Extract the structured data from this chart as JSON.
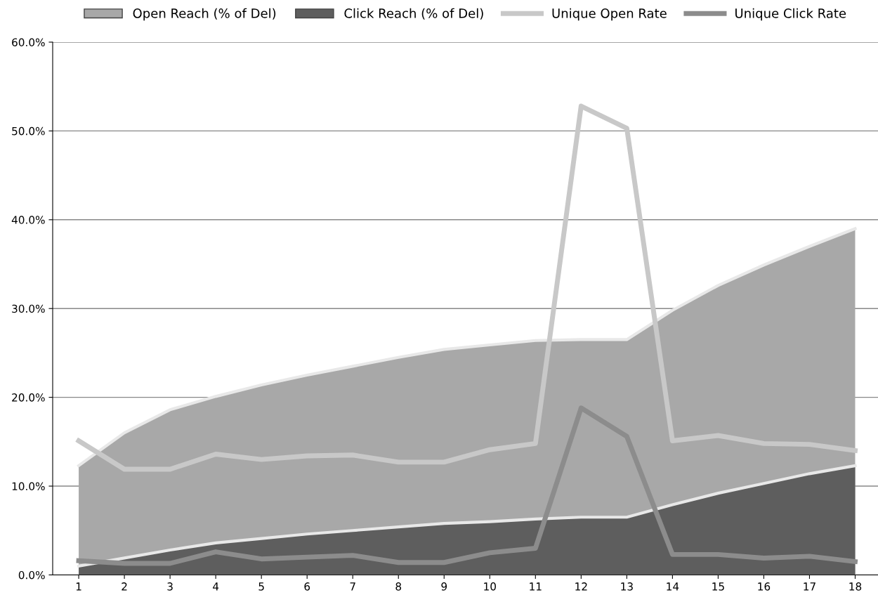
{
  "chart_data": {
    "type": "area",
    "categories": [
      "1",
      "2",
      "3",
      "4",
      "5",
      "6",
      "7",
      "8",
      "9",
      "10",
      "11",
      "12",
      "13",
      "14",
      "15",
      "16",
      "17",
      "18"
    ],
    "series": [
      {
        "name": "Open Reach (% of Del)",
        "color": "#a8a8a8",
        "values": [
          12.3,
          16.0,
          18.6,
          20.1,
          21.4,
          22.5,
          23.5,
          24.5,
          25.4,
          25.9,
          26.4,
          26.5,
          26.5,
          29.8,
          32.6,
          34.9,
          37.0,
          39.0
        ]
      },
      {
        "name": "Click Reach (% of Del)",
        "color": "#5e5e5e",
        "values": [
          1.0,
          1.9,
          2.8,
          3.6,
          4.1,
          4.6,
          5.0,
          5.4,
          5.8,
          6.0,
          6.3,
          6.5,
          6.5,
          7.9,
          9.2,
          10.3,
          11.4,
          12.3
        ]
      },
      {
        "name": "Unique Open Rate",
        "type": "line",
        "color": "#c8c8c8",
        "values": [
          15.1,
          11.9,
          11.9,
          13.6,
          13.0,
          13.4,
          13.5,
          12.7,
          12.7,
          14.1,
          14.8,
          52.8,
          50.3,
          15.1,
          15.7,
          14.8,
          14.7,
          14.0
        ]
      },
      {
        "name": "Unique Click Rate",
        "type": "line",
        "color": "#8c8c8c",
        "values": [
          1.6,
          1.3,
          1.3,
          2.6,
          1.8,
          2.0,
          2.2,
          1.4,
          1.4,
          2.5,
          3.0,
          18.8,
          15.6,
          2.3,
          2.3,
          1.9,
          2.1,
          1.5
        ]
      }
    ],
    "ylim": [
      0,
      60
    ],
    "yticks": [
      {
        "value": 0,
        "label": "0.0%"
      },
      {
        "value": 10,
        "label": "10.0%"
      },
      {
        "value": 20,
        "label": "20.0%"
      },
      {
        "value": 30,
        "label": "30.0%"
      },
      {
        "value": 40,
        "label": "40.0%"
      },
      {
        "value": 50,
        "label": "50.0%"
      },
      {
        "value": 60,
        "label": "60.0%"
      }
    ],
    "grid": "y",
    "legend": "top",
    "marker": "none",
    "line_style": "solid"
  }
}
